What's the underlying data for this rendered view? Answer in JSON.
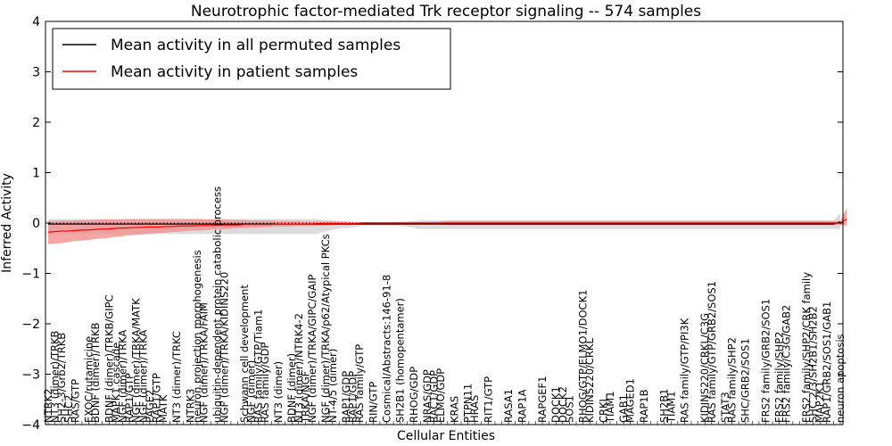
{
  "chart_data": {
    "type": "line",
    "title": "Neurotrophic factor-mediated Trk receptor signaling -- 574 samples",
    "xlabel": "Cellular Entities",
    "ylabel": "Inferred Activity",
    "ylim": [
      -4,
      4
    ],
    "yticks": [
      -4,
      -3,
      -2,
      -1,
      0,
      1,
      2,
      3,
      4
    ],
    "ytick_labels": [
      "−4",
      "−3",
      "−2",
      "−1",
      "0",
      "1",
      "2",
      "3",
      "4"
    ],
    "grid": false,
    "legend_position": "top-left",
    "x_tick_labels": [
      "NTRK2",
      "NT3 (dimer)/TRKB",
      "SH2-3/Grb2/TRKB",
      "SHC2",
      "RAS/GTP",
      "…",
      "EXOC/rutamicine",
      "BDNF (dimer)/TRKB",
      "…",
      "BDNF (dimer)/TRKB/GIPC",
      "MAPK1 cascade",
      "NGF (dimer)/TRKA",
      "RAP1/GTP",
      "NGF (dimer)/TRKA/MATK",
      "NGF (dimer)/TRKA",
      "PAGE2",
      "RAP1/GTP",
      "MATK",
      "…",
      "NT3 (dimer)/TRKC",
      "…",
      "NTRK3",
      "neuron projection morphogenesis",
      "NGF (dimer)/TRKA/FAIM",
      "…",
      "ubiquitin-dependent protein catabolic process",
      "NGF (dimer)/TRKA/KIDINS220",
      "…",
      "…",
      "Schwann cell development",
      "NGF (dimer)",
      "RAS family/GTP/Tiam1",
      "RAS family/GDP",
      "…",
      "NT3 (dimer)",
      "…",
      "BDNF (dimer)",
      "NT3 (dimer)/NTRK4-2",
      "TRKA/NGF",
      "NGF (dimer)/TRKA/GIPC/GAIP",
      "…",
      "NGF (dimer)/TRKA/p62/Atypical PKCs",
      "NT-4/5 (dimer)",
      "…",
      "RAP1/GDP",
      "RAP1/GDP",
      "RAS family/GTP",
      "…",
      "RIN/GTP",
      "…",
      "Cosmical/Abstracts:146-91-8",
      "…",
      "SH2B1 (homopentamer)",
      "…",
      "RHOG/GDP",
      "…",
      "NRAS/GDP",
      "RAC1/GDP",
      "ELMO/GDP",
      "…",
      "KRAS",
      "…",
      "PTPN11",
      "HRAS",
      "…",
      "RIT1/GTP",
      "…",
      "…",
      "RASA1",
      "…",
      "RAP1A",
      "…",
      "…",
      "RAPGEF1",
      "…",
      "DOCK1",
      "DOCK2",
      "SOS1",
      "…",
      "RHOG/GTP/ELMO1/DOCK1",
      "KIDINS220/CRKL",
      "…",
      "CRKL",
      "TIAM1",
      "…",
      "GAB1",
      "MAGED1",
      "…",
      "RAP1B",
      "…",
      "…",
      "SH2B1",
      "TIAM1",
      "…",
      "RAS family/GTP/PI3K",
      "…",
      "…",
      "KIDINS220/CRKL/C3G",
      "RAS family/GTP/GRB2/SOS1",
      "…",
      "STAT3",
      "RAS family/SHP2",
      "…",
      "SHC/GRB2/SOS1",
      "…",
      "…",
      "FRS2 family/GRB2/SOS1",
      "…",
      "FRS2 family/SHP2",
      "FRS2 family/C3G/GAB2",
      "…",
      "…",
      "FRS2 family/SHP2/CRK family",
      "SHC 2/3/SH2B1/SH2B2",
      "MAP2K1",
      "RAP1/GRB2/SOS1/GAB1",
      "…",
      "neuron apoptosis"
    ],
    "series": [
      {
        "name": "Mean activity in all permuted samples",
        "color": "#000000",
        "values": [
          -0.02,
          -0.02,
          -0.02,
          -0.02,
          -0.02,
          -0.02,
          -0.02,
          -0.02,
          -0.02,
          -0.02,
          -0.02,
          -0.02,
          -0.02,
          -0.02,
          -0.02,
          -0.02,
          -0.02,
          -0.02,
          -0.02,
          -0.02,
          -0.02,
          -0.02,
          -0.02,
          -0.02,
          -0.02,
          -0.02,
          -0.02,
          -0.02,
          -0.02,
          -0.02,
          -0.02,
          -0.02,
          -0.02,
          -0.02,
          -0.02,
          -0.02,
          -0.02,
          -0.02,
          -0.02,
          -0.02,
          -0.02,
          -0.02,
          -0.02,
          -0.02,
          -0.02,
          -0.02,
          -0.02,
          -0.02,
          -0.02,
          -0.02,
          -0.02,
          -0.02,
          -0.02,
          -0.02,
          -0.02,
          -0.02,
          -0.02,
          -0.02,
          -0.02,
          -0.02,
          -0.02,
          -0.02,
          -0.02,
          -0.02,
          -0.02,
          -0.02,
          -0.02,
          -0.02,
          -0.02,
          -0.02,
          -0.02,
          -0.02,
          -0.02,
          -0.02,
          -0.02,
          -0.02,
          -0.02,
          -0.02,
          -0.02,
          -0.02,
          -0.02,
          -0.02,
          -0.02,
          -0.02,
          -0.02,
          -0.02,
          -0.02,
          -0.02,
          -0.02,
          -0.02,
          -0.02,
          -0.02,
          -0.02,
          -0.02,
          -0.02,
          -0.02,
          -0.02,
          -0.02,
          -0.02,
          -0.02,
          -0.02,
          -0.02,
          -0.02,
          -0.02,
          -0.02,
          -0.02,
          -0.02,
          -0.02,
          -0.02,
          -0.02,
          -0.02,
          -0.02,
          -0.02,
          -0.02,
          -0.02,
          -0.02,
          -0.02,
          -0.02,
          -0.02,
          -0.02,
          -0.02,
          0.02
        ],
        "band_lower": [
          -0.22,
          -0.22,
          -0.22,
          -0.22,
          -0.22,
          -0.22,
          -0.22,
          -0.22,
          -0.22,
          -0.22,
          -0.22,
          -0.22,
          -0.22,
          -0.22,
          -0.22,
          -0.22,
          -0.22,
          -0.22,
          -0.22,
          -0.22,
          -0.22,
          -0.22,
          -0.22,
          -0.22,
          -0.22,
          -0.22,
          -0.22,
          -0.22,
          -0.22,
          -0.22,
          -0.22,
          -0.22,
          -0.22,
          -0.22,
          -0.22,
          -0.22,
          -0.22,
          -0.22,
          -0.22,
          -0.22,
          -0.22,
          -0.22,
          -0.18,
          -0.15,
          -0.12,
          -0.1,
          -0.1,
          -0.08,
          -0.06,
          -0.05,
          -0.05,
          -0.05,
          -0.05,
          -0.05,
          -0.06,
          -0.08,
          -0.1,
          -0.12,
          -0.12,
          -0.12,
          -0.12,
          -0.12,
          -0.12,
          -0.12,
          -0.12,
          -0.12,
          -0.12,
          -0.12,
          -0.12,
          -0.12,
          -0.12,
          -0.12,
          -0.12,
          -0.12,
          -0.12,
          -0.12,
          -0.12,
          -0.12,
          -0.12,
          -0.12,
          -0.12,
          -0.12,
          -0.12,
          -0.12,
          -0.12,
          -0.12,
          -0.12,
          -0.12,
          -0.12,
          -0.12,
          -0.12,
          -0.12,
          -0.12,
          -0.12,
          -0.12,
          -0.12,
          -0.12,
          -0.12,
          -0.12,
          -0.12,
          -0.12,
          -0.12,
          -0.12,
          -0.12,
          -0.12,
          -0.12,
          -0.12,
          -0.12,
          -0.12,
          -0.12,
          -0.12,
          -0.12,
          -0.12,
          -0.12,
          -0.12,
          -0.12,
          -0.12,
          -0.12,
          -0.12,
          -0.12,
          -0.12,
          -0.12
        ],
        "band_upper": [
          0.08,
          0.08,
          0.08,
          0.08,
          0.08,
          0.08,
          0.08,
          0.08,
          0.08,
          0.08,
          0.08,
          0.08,
          0.08,
          0.08,
          0.08,
          0.08,
          0.08,
          0.08,
          0.08,
          0.08,
          0.08,
          0.08,
          0.08,
          0.08,
          0.08,
          0.08,
          0.08,
          0.08,
          0.08,
          0.08,
          0.08,
          0.08,
          0.08,
          0.08,
          0.08,
          0.08,
          0.08,
          0.08,
          0.08,
          0.08,
          0.08,
          0.08,
          0.06,
          0.05,
          0.04,
          0.03,
          0.03,
          0.02,
          0.01,
          0.01,
          0.01,
          0.01,
          0.01,
          0.01,
          0.02,
          0.03,
          0.04,
          0.05,
          0.05,
          0.05,
          0.05,
          0.05,
          0.05,
          0.05,
          0.05,
          0.05,
          0.05,
          0.05,
          0.05,
          0.05,
          0.05,
          0.05,
          0.05,
          0.05,
          0.05,
          0.05,
          0.05,
          0.05,
          0.05,
          0.05,
          0.05,
          0.05,
          0.05,
          0.05,
          0.05,
          0.05,
          0.05,
          0.05,
          0.05,
          0.05,
          0.05,
          0.05,
          0.05,
          0.05,
          0.05,
          0.05,
          0.05,
          0.05,
          0.05,
          0.05,
          0.05,
          0.05,
          0.05,
          0.05,
          0.05,
          0.05,
          0.05,
          0.05,
          0.05,
          0.05,
          0.05,
          0.05,
          0.05,
          0.05,
          0.05,
          0.05,
          0.05,
          0.05,
          0.05,
          0.05,
          0.05,
          0.2
        ]
      },
      {
        "name": "Mean activity in patient samples",
        "color": "#ff0000",
        "values": [
          -0.18,
          -0.17,
          -0.16,
          -0.16,
          -0.15,
          -0.14,
          -0.14,
          -0.13,
          -0.12,
          -0.12,
          -0.11,
          -0.1,
          -0.1,
          -0.09,
          -0.09,
          -0.08,
          -0.08,
          -0.08,
          -0.07,
          -0.07,
          -0.06,
          -0.06,
          -0.06,
          -0.05,
          -0.05,
          -0.05,
          -0.04,
          -0.04,
          -0.04,
          -0.04,
          -0.03,
          -0.03,
          -0.03,
          -0.03,
          -0.03,
          -0.02,
          -0.02,
          -0.02,
          -0.02,
          -0.02,
          -0.02,
          -0.01,
          -0.01,
          -0.01,
          -0.01,
          -0.01,
          -0.01,
          -0.01,
          0.0,
          0.0,
          0.0,
          0.0,
          0.0,
          0.0,
          0.0,
          0.0,
          0.0,
          0.0,
          0.0,
          0.0,
          0.0,
          0.0,
          0.0,
          0.0,
          0.0,
          0.0,
          0.0,
          0.0,
          0.0,
          0.0,
          0.0,
          0.0,
          0.0,
          0.0,
          0.0,
          0.0,
          0.0,
          0.0,
          0.0,
          0.0,
          0.0,
          0.0,
          0.0,
          0.0,
          0.0,
          0.0,
          0.0,
          0.0,
          0.0,
          0.0,
          0.0,
          0.0,
          0.0,
          0.0,
          0.0,
          0.0,
          0.0,
          0.0,
          0.0,
          0.0,
          0.0,
          0.0,
          0.0,
          0.0,
          0.0,
          0.0,
          0.0,
          0.0,
          0.0,
          0.0,
          0.0,
          0.0,
          0.0,
          0.0,
          0.0,
          0.0,
          0.0,
          0.0,
          0.0,
          0.0,
          0.0,
          0.0,
          0.08
        ],
        "band_lower": [
          -0.42,
          -0.41,
          -0.4,
          -0.38,
          -0.36,
          -0.35,
          -0.34,
          -0.32,
          -0.31,
          -0.3,
          -0.28,
          -0.27,
          -0.25,
          -0.24,
          -0.23,
          -0.22,
          -0.21,
          -0.2,
          -0.19,
          -0.18,
          -0.17,
          -0.16,
          -0.15,
          -0.15,
          -0.14,
          -0.13,
          -0.12,
          -0.12,
          -0.11,
          -0.1,
          -0.1,
          -0.09,
          -0.09,
          -0.08,
          -0.08,
          -0.07,
          -0.07,
          -0.07,
          -0.06,
          -0.06,
          -0.06,
          -0.05,
          -0.05,
          -0.05,
          -0.04,
          -0.04,
          -0.04,
          -0.03,
          -0.02,
          -0.02,
          -0.02,
          -0.02,
          -0.02,
          -0.02,
          -0.02,
          -0.02,
          -0.02,
          -0.02,
          -0.02,
          -0.02,
          -0.03,
          -0.04,
          -0.04,
          -0.04,
          -0.04,
          -0.04,
          -0.04,
          -0.04,
          -0.04,
          -0.04,
          -0.04,
          -0.04,
          -0.04,
          -0.04,
          -0.04,
          -0.04,
          -0.04,
          -0.04,
          -0.04,
          -0.04,
          -0.04,
          -0.04,
          -0.04,
          -0.04,
          -0.04,
          -0.04,
          -0.04,
          -0.04,
          -0.04,
          -0.04,
          -0.04,
          -0.04,
          -0.04,
          -0.04,
          -0.04,
          -0.04,
          -0.04,
          -0.04,
          -0.04,
          -0.04,
          -0.04,
          -0.04,
          -0.04,
          -0.04,
          -0.04,
          -0.04,
          -0.04,
          -0.04,
          -0.04,
          -0.04,
          -0.04,
          -0.04,
          -0.04,
          -0.04,
          -0.04,
          -0.04,
          -0.04,
          -0.04,
          -0.04,
          -0.04,
          -0.04,
          -0.04,
          -0.05
        ],
        "band_upper": [
          0.04,
          0.04,
          0.05,
          0.05,
          0.05,
          0.06,
          0.06,
          0.06,
          0.07,
          0.07,
          0.07,
          0.07,
          0.08,
          0.08,
          0.08,
          0.08,
          0.08,
          0.08,
          0.08,
          0.08,
          0.08,
          0.08,
          0.08,
          0.08,
          0.07,
          0.07,
          0.07,
          0.07,
          0.06,
          0.06,
          0.06,
          0.05,
          0.05,
          0.05,
          0.05,
          0.04,
          0.04,
          0.04,
          0.04,
          0.03,
          0.03,
          0.03,
          0.03,
          0.03,
          0.03,
          0.03,
          0.02,
          0.02,
          0.02,
          0.02,
          0.02,
          0.02,
          0.02,
          0.02,
          0.02,
          0.02,
          0.02,
          0.02,
          0.02,
          0.02,
          0.03,
          0.04,
          0.04,
          0.04,
          0.04,
          0.04,
          0.04,
          0.04,
          0.04,
          0.04,
          0.04,
          0.04,
          0.04,
          0.04,
          0.04,
          0.04,
          0.04,
          0.04,
          0.04,
          0.04,
          0.04,
          0.04,
          0.04,
          0.04,
          0.04,
          0.04,
          0.04,
          0.04,
          0.04,
          0.04,
          0.04,
          0.04,
          0.04,
          0.04,
          0.04,
          0.04,
          0.04,
          0.04,
          0.04,
          0.04,
          0.04,
          0.04,
          0.04,
          0.04,
          0.04,
          0.04,
          0.04,
          0.04,
          0.04,
          0.04,
          0.04,
          0.04,
          0.04,
          0.04,
          0.04,
          0.04,
          0.04,
          0.04,
          0.04,
          0.04,
          0.04,
          0.04,
          0.3
        ]
      }
    ],
    "colors": {
      "permuted_band": "#d0d0d0",
      "patient_band": "#f29090",
      "axes": "#000000"
    }
  }
}
